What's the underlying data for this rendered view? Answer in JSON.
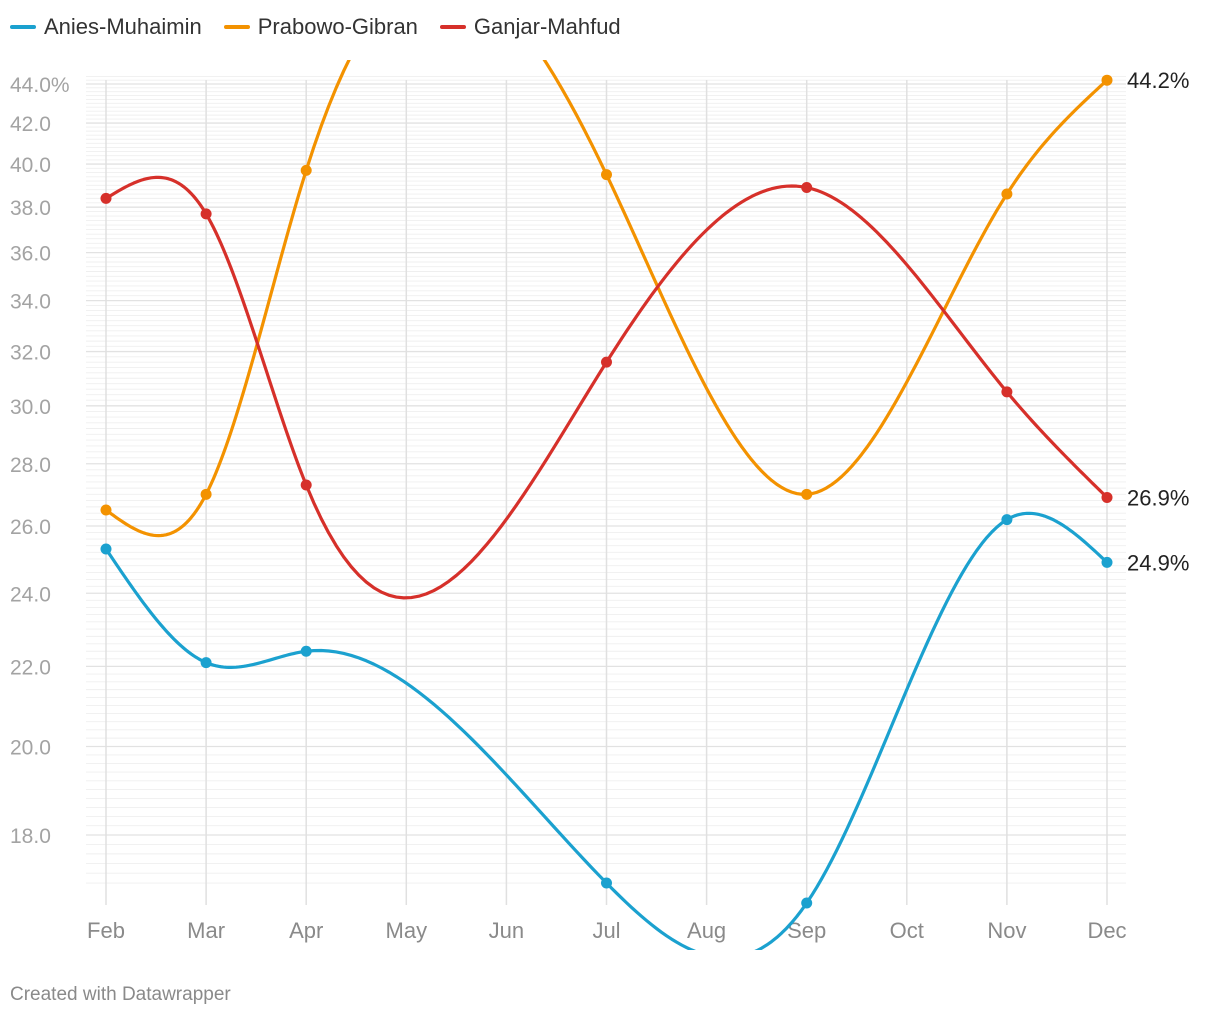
{
  "chart_data": {
    "type": "line",
    "categories": [
      "Feb",
      "Mar",
      "Apr",
      "May",
      "Jun",
      "Jul",
      "Aug",
      "Sep",
      "Oct",
      "Nov",
      "Dec"
    ],
    "yscale": "log",
    "ylim": [
      16.6,
      44.4
    ],
    "yticks": [
      18,
      20,
      22,
      24,
      26,
      28,
      30,
      32,
      34,
      36,
      38,
      40,
      42,
      44
    ],
    "ytick_labels": [
      "18.0",
      "20.0",
      "22.0",
      "24.0",
      "26.0",
      "28.0",
      "30.0",
      "32.0",
      "34.0",
      "36.0",
      "38.0",
      "40.0",
      "42.0",
      "44.0%"
    ],
    "grid": true,
    "legend_position": "top-left",
    "series": [
      {
        "name": "Anies-Muhaimin",
        "color": "#1ba1cf",
        "points": [
          {
            "x": "Feb",
            "y": 25.3
          },
          {
            "x": "Mar",
            "y": 22.1
          },
          {
            "x": "Apr",
            "y": 22.4
          },
          {
            "x": "Jul",
            "y": 17.0
          },
          {
            "x": "Sep",
            "y": 16.6
          },
          {
            "x": "Nov",
            "y": 26.2
          },
          {
            "x": "Dec",
            "y": 24.9
          }
        ],
        "end_label": "24.9%"
      },
      {
        "name": "Prabowo-Gibran",
        "color": "#f39200",
        "points": [
          {
            "x": "Feb",
            "y": 26.5
          },
          {
            "x": "Mar",
            "y": 27.0
          },
          {
            "x": "Apr",
            "y": 39.7
          },
          {
            "x": "Jul",
            "y": 39.5
          },
          {
            "x": "Sep",
            "y": 27.0
          },
          {
            "x": "Nov",
            "y": 38.6
          },
          {
            "x": "Dec",
            "y": 44.2
          }
        ],
        "end_label": "44.2%"
      },
      {
        "name": "Ganjar-Mahfud",
        "color": "#d6302a",
        "points": [
          {
            "x": "Feb",
            "y": 38.4
          },
          {
            "x": "Mar",
            "y": 37.7
          },
          {
            "x": "Apr",
            "y": 27.3
          },
          {
            "x": "Jul",
            "y": 31.6
          },
          {
            "x": "Sep",
            "y": 38.9
          },
          {
            "x": "Nov",
            "y": 30.5
          },
          {
            "x": "Dec",
            "y": 26.9
          }
        ],
        "end_label": "26.9%"
      }
    ]
  },
  "footer": {
    "credit": "Created with Datawrapper"
  }
}
